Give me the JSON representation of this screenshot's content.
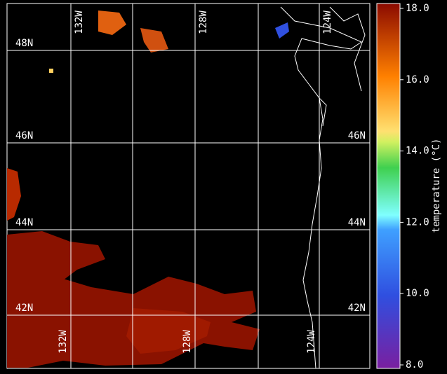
{
  "map": {
    "lat_labels": [
      "48N",
      "46N",
      "44N",
      "42N"
    ],
    "lon_labels": [
      "132W",
      "128W",
      "124W"
    ]
  },
  "colorbar": {
    "label": "temperature (°C)",
    "range": [
      8,
      18
    ],
    "ticks": [
      {
        "value": 8,
        "label": "8.0"
      },
      {
        "value": 10,
        "label": "10.0"
      },
      {
        "value": 12,
        "label": "12.0"
      },
      {
        "value": 14,
        "label": "14.0"
      },
      {
        "value": 16,
        "label": "16.0"
      },
      {
        "value": 18,
        "label": "18.0"
      }
    ]
  }
}
